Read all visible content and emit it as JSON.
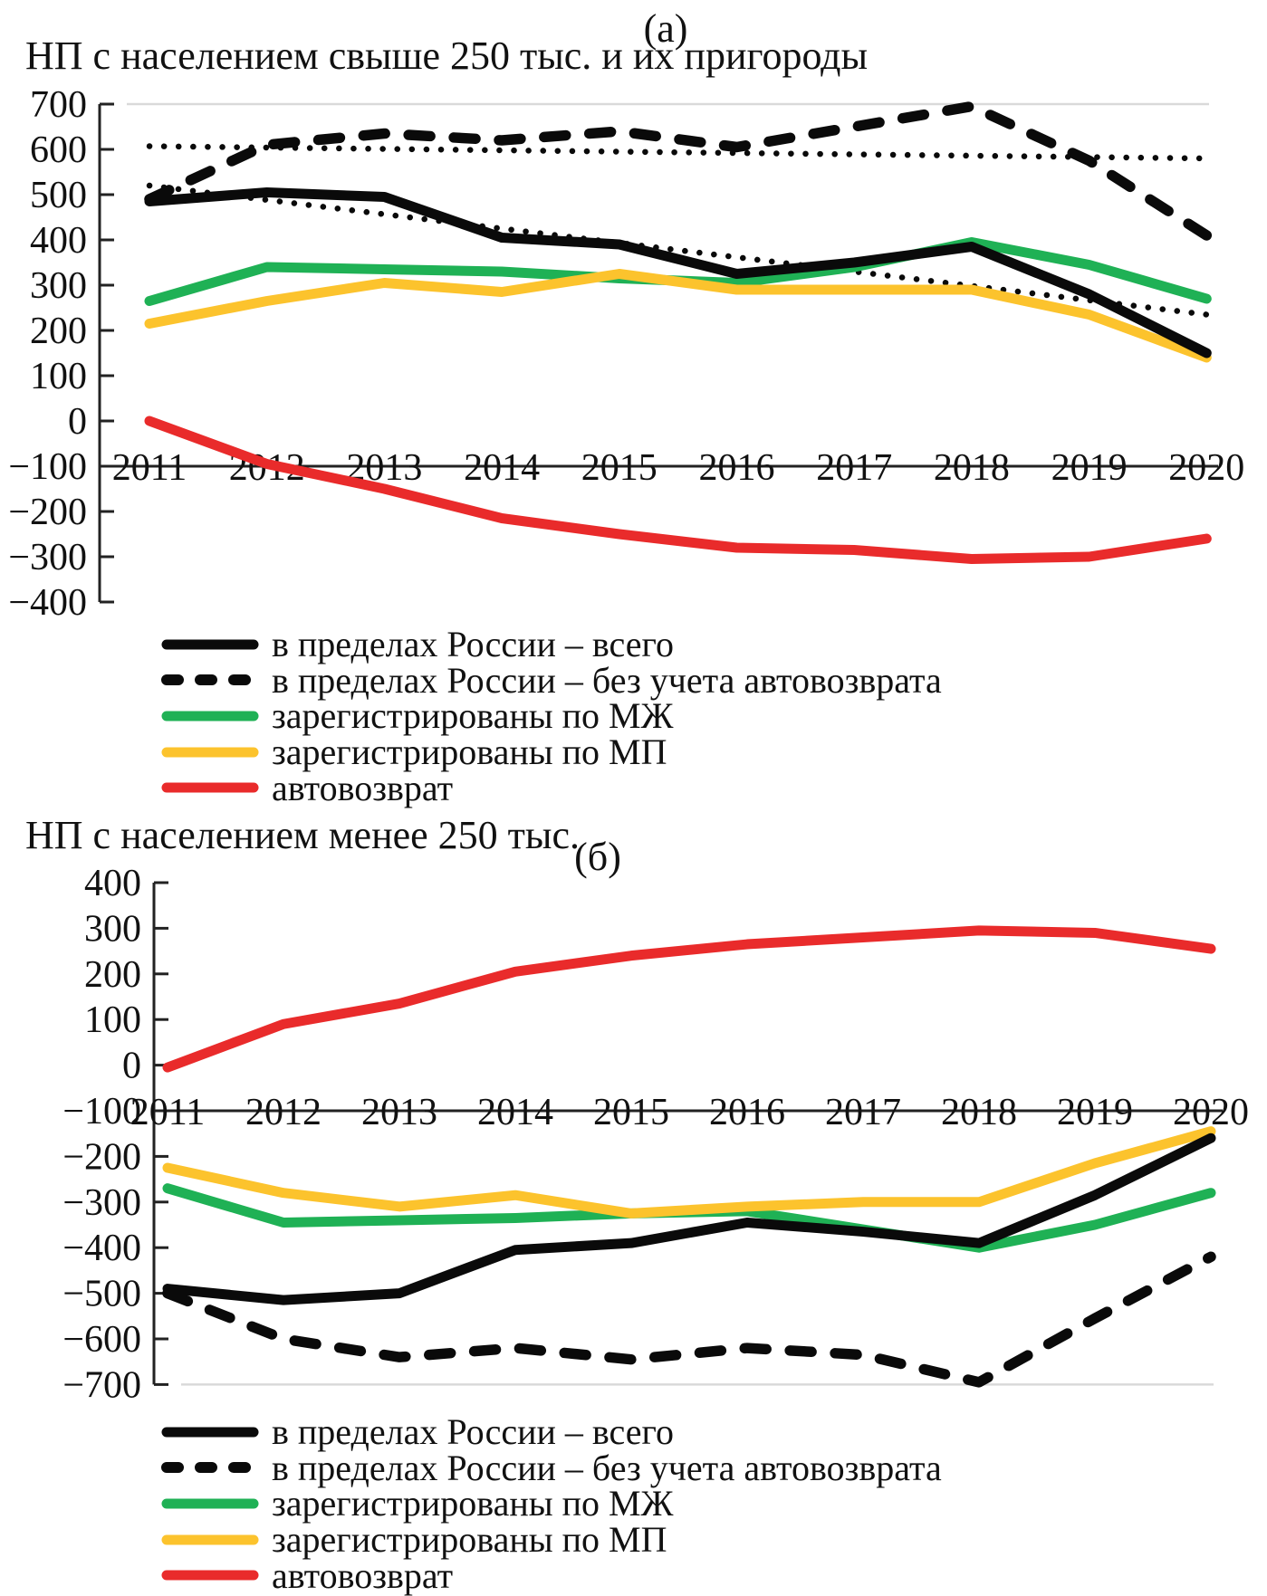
{
  "figure": {
    "background": "#ffffff",
    "text_color": "#111111"
  },
  "colors": {
    "black": "#0a0a0a",
    "green": "#1fb155",
    "yellow": "#fcc32d",
    "red": "#e92b2b",
    "gridline": "#d9d9d9"
  },
  "chart_data": [
    {
      "type": "line",
      "panel_label": "(а)",
      "title": "НП с населением свыше 250 тыс. и их пригороды",
      "x": [
        2011,
        2012,
        2013,
        2014,
        2015,
        2016,
        2017,
        2018,
        2019,
        2020
      ],
      "ylim": [
        -400,
        700
      ],
      "ytick_step": 100,
      "x_axis_at_y": -100,
      "xlabel": "",
      "ylabel": "",
      "grid": "single light gridline at y=700",
      "legend_position": "below-left",
      "series": [
        {
          "name": "в пределах России – всего",
          "style": "solid",
          "color": "#0a0a0a",
          "values": [
            485,
            505,
            495,
            405,
            390,
            325,
            350,
            385,
            280,
            150
          ]
        },
        {
          "name": "в пределах России – без учета автовозврата",
          "style": "dashed",
          "color": "#0a0a0a",
          "values": [
            490,
            610,
            635,
            620,
            640,
            605,
            650,
            695,
            575,
            410
          ]
        },
        {
          "name": "зарегистрированы по МЖ",
          "style": "solid",
          "color": "#1fb155",
          "values": [
            265,
            340,
            335,
            330,
            315,
            305,
            340,
            395,
            345,
            270
          ]
        },
        {
          "name": "зарегистрированы по МП",
          "style": "solid",
          "color": "#fcc32d",
          "values": [
            215,
            265,
            305,
            285,
            325,
            290,
            290,
            290,
            235,
            140
          ]
        },
        {
          "name": "автовозврат",
          "style": "solid",
          "color": "#e92b2b",
          "values": [
            0,
            -95,
            -150,
            -215,
            -250,
            -280,
            -285,
            -305,
            -300,
            -260
          ]
        }
      ],
      "trendlines": [
        {
          "key": "dotted-trend-upper",
          "style": "dotted",
          "color": "#0a0a0a",
          "start": 607,
          "end": 580
        },
        {
          "key": "dotted-trend-lower",
          "style": "dotted",
          "color": "#0a0a0a",
          "start": 520,
          "end": 235
        }
      ]
    },
    {
      "type": "line",
      "panel_label": "(б)",
      "title": "НП с населением менее 250 тыс.",
      "x": [
        2011,
        2012,
        2013,
        2014,
        2015,
        2016,
        2017,
        2018,
        2019,
        2020
      ],
      "ylim": [
        -700,
        400
      ],
      "ytick_step": 100,
      "x_axis_at_y": -100,
      "xlabel": "",
      "ylabel": "",
      "grid": "single light gridline at y=-700",
      "legend_position": "below-left",
      "series": [
        {
          "name": "в пределах России – всего",
          "style": "solid",
          "color": "#0a0a0a",
          "values": [
            -490,
            -515,
            -500,
            -405,
            -390,
            -345,
            -365,
            -390,
            -285,
            -160
          ]
        },
        {
          "name": "в пределах России – без учета автовозврата",
          "style": "dashed",
          "color": "#0a0a0a",
          "values": [
            -500,
            -600,
            -640,
            -620,
            -645,
            -620,
            -635,
            -695,
            -555,
            -420
          ]
        },
        {
          "name": "зарегистрированы по МЖ",
          "style": "solid",
          "color": "#1fb155",
          "values": [
            -270,
            -345,
            -340,
            -335,
            -325,
            -320,
            -360,
            -400,
            -350,
            -280
          ]
        },
        {
          "name": "зарегистрированы по МП",
          "style": "solid",
          "color": "#fcc32d",
          "values": [
            -225,
            -280,
            -310,
            -285,
            -325,
            -310,
            -300,
            -300,
            -215,
            -145
          ]
        },
        {
          "name": "автовозврат",
          "style": "solid",
          "color": "#e92b2b",
          "values": [
            -5,
            90,
            135,
            205,
            240,
            265,
            280,
            295,
            290,
            255
          ]
        }
      ],
      "trendlines": []
    }
  ]
}
